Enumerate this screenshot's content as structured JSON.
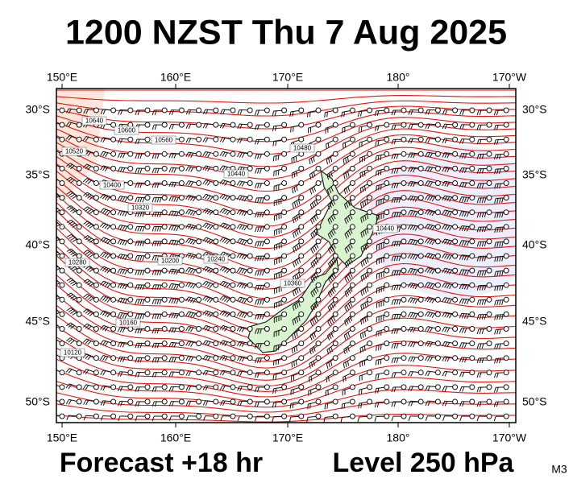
{
  "title": "1200 NZST Thu 7 Aug 2025",
  "lon_labels_top": [
    "150°E",
    "160°E",
    "170°E",
    "180°",
    "170°W"
  ],
  "lon_labels_bottom": [
    "150°E",
    "160°E",
    "170°E",
    "180°",
    "170°W"
  ],
  "lat_labels_left": [
    "30°S",
    "35°S",
    "40°S",
    "45°S",
    "50°S"
  ],
  "lat_labels_right": [
    "30°S",
    "35°S",
    "40°S",
    "45°S",
    "50°S"
  ],
  "contour_labels": [
    "10640",
    "10600",
    "10520",
    "10560",
    "10480",
    "10440",
    "10400",
    "10320",
    "10280",
    "10200",
    "10240",
    "10160",
    "10120",
    "10360",
    "10440"
  ],
  "footer": {
    "forecast": "Forecast +18 hr",
    "level": "Level 250 hPa",
    "model": "M3"
  }
}
